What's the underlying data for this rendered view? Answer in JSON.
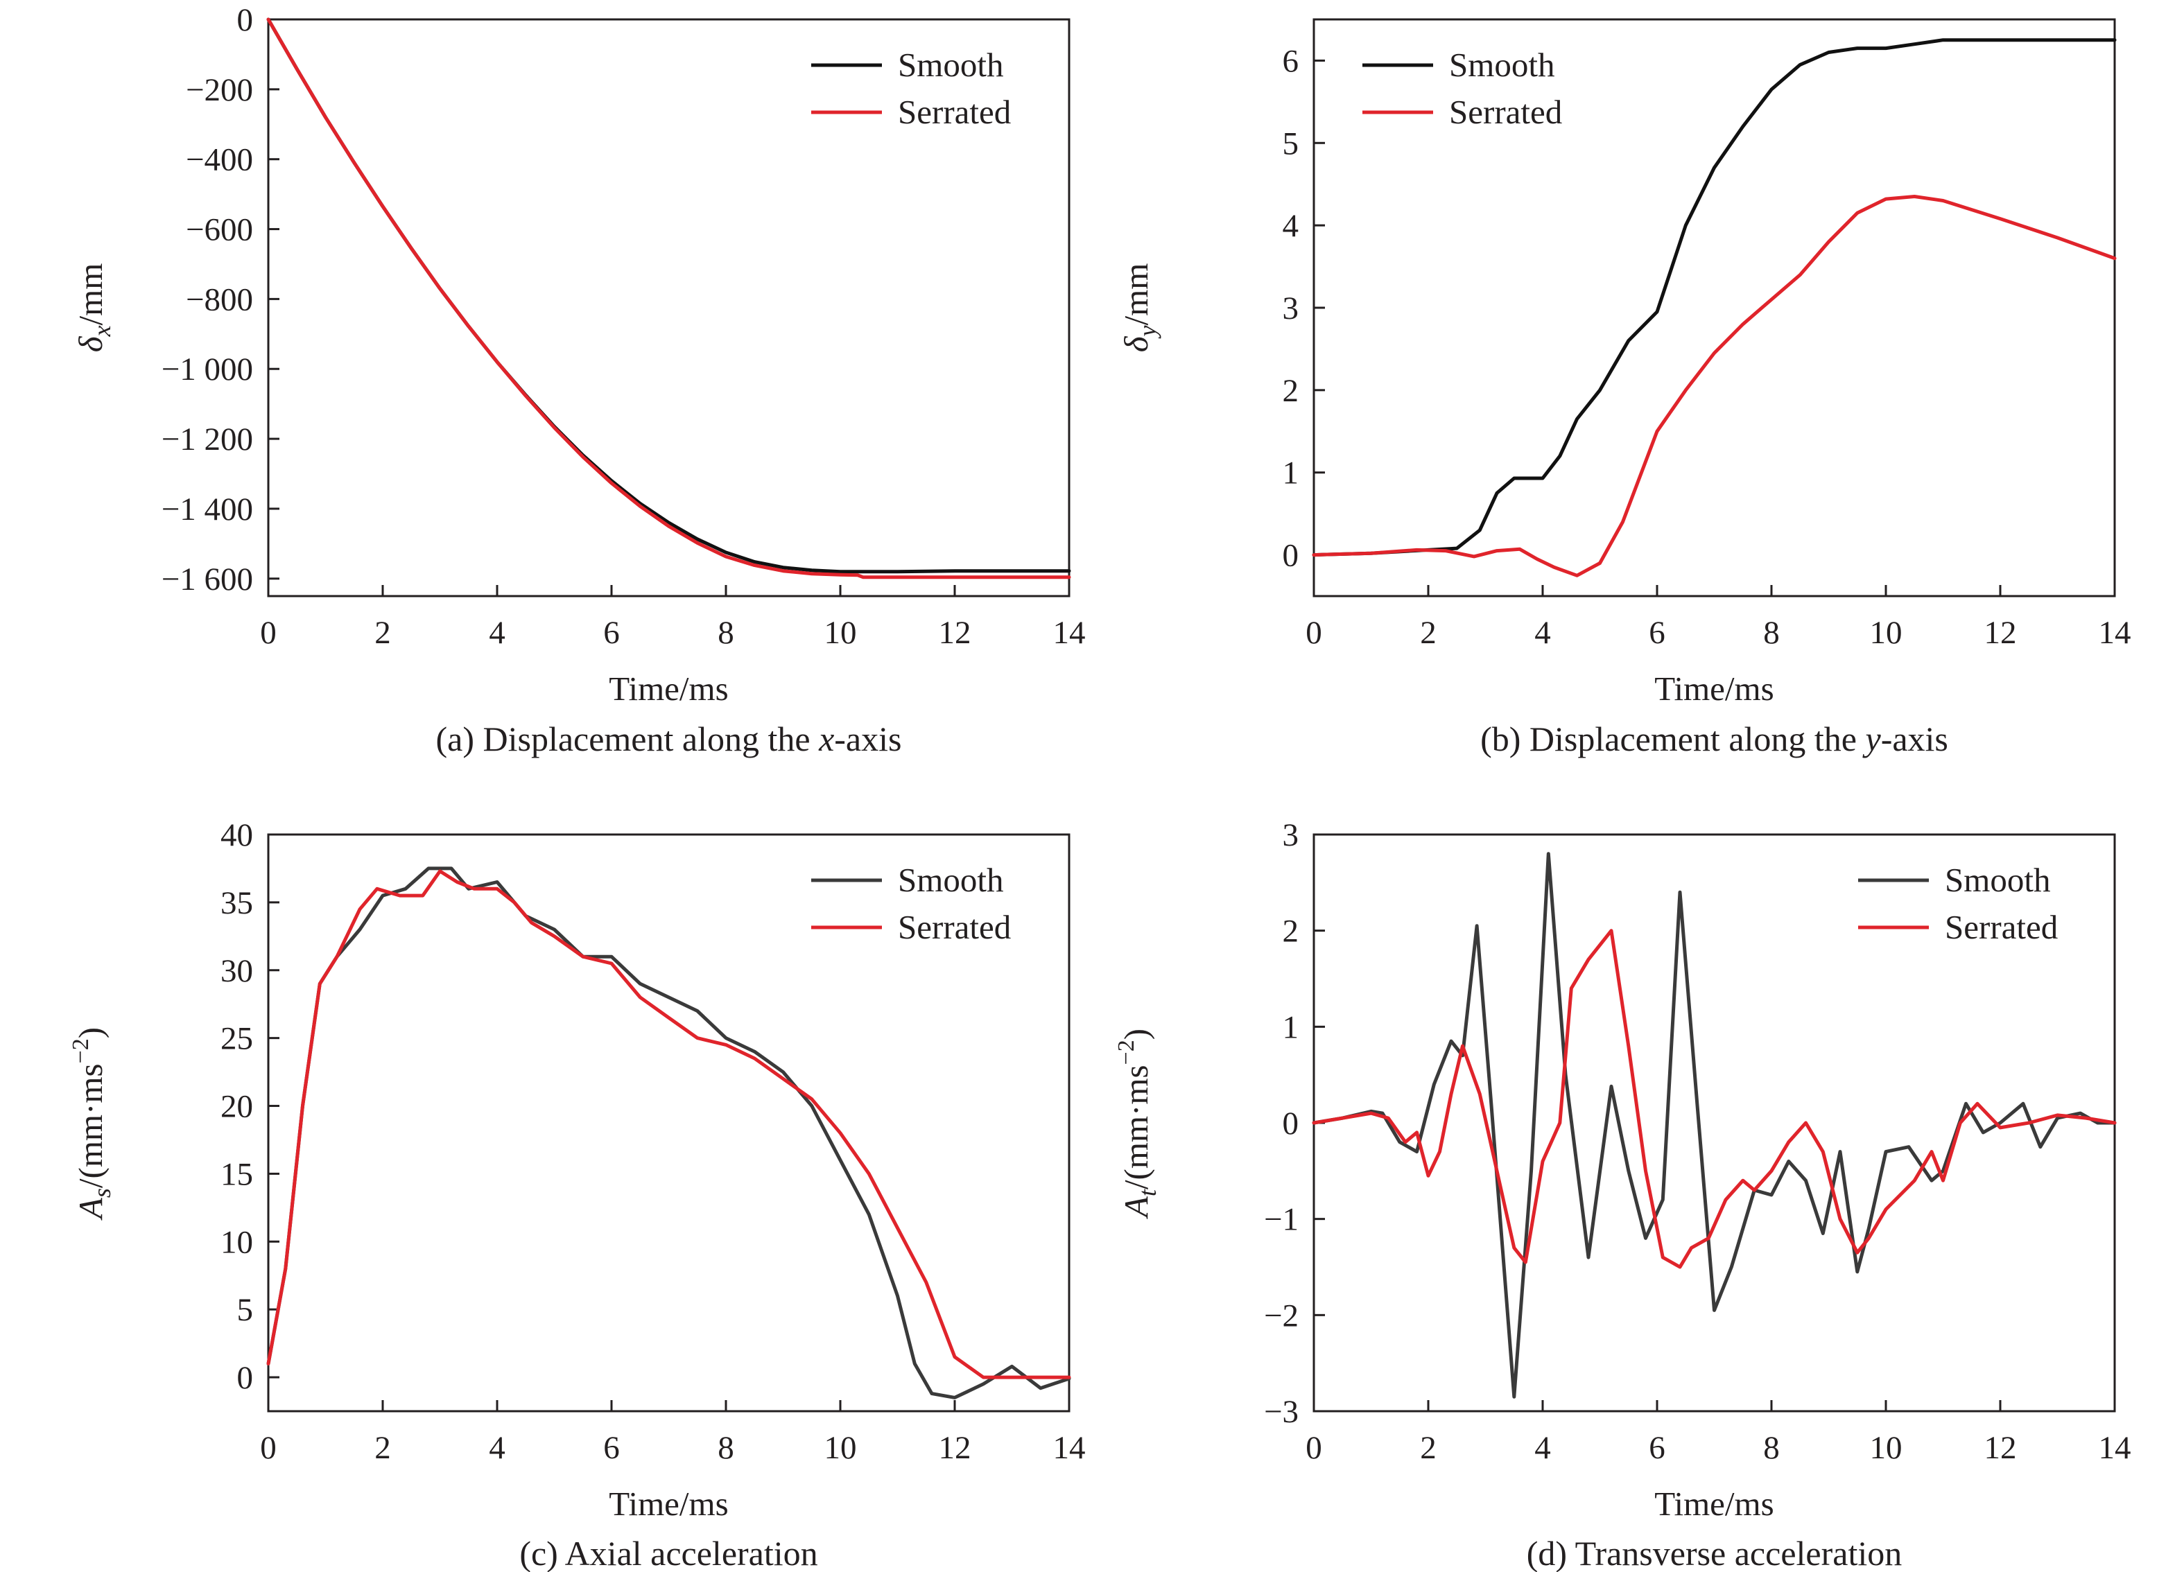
{
  "chart_data": [
    {
      "id": "a",
      "type": "line",
      "caption_prefix": "(a) Displacement along the ",
      "caption_var": "x",
      "caption_suffix": "-axis",
      "xlabel": "Time/ms",
      "ylabel_sym": "δ",
      "ylabel_sub": "x",
      "ylabel_unit": "/mm",
      "xlim": [
        0,
        14
      ],
      "ylim": [
        -1650,
        0
      ],
      "xticks": [
        0,
        2,
        4,
        6,
        8,
        10,
        12,
        14
      ],
      "yticks": [
        0,
        -200,
        -400,
        -600,
        -800,
        -1000,
        -1200,
        -1400,
        -1600
      ],
      "ytick_labels": [
        "0",
        "−200",
        "−400",
        "−600",
        "−800",
        "−1 000",
        "−1 200",
        "−1 400",
        "−1 600"
      ],
      "legend_position": "top-right",
      "series": [
        {
          "name": "Smooth",
          "color": "#111111",
          "x": [
            0,
            0.5,
            1,
            1.5,
            2,
            2.5,
            3,
            3.5,
            4,
            4.5,
            5,
            5.5,
            6,
            6.5,
            7,
            7.5,
            8,
            8.5,
            9,
            9.5,
            10,
            10.5,
            11,
            11.5,
            12,
            13,
            14
          ],
          "y": [
            0,
            -142,
            -280,
            -410,
            -535,
            -655,
            -770,
            -878,
            -980,
            -1075,
            -1165,
            -1247,
            -1320,
            -1385,
            -1440,
            -1487,
            -1525,
            -1552,
            -1568,
            -1576,
            -1580,
            -1580,
            -1580,
            -1579,
            -1578,
            -1578,
            -1578
          ]
        },
        {
          "name": "Serrated",
          "color": "#e0242b",
          "x": [
            0,
            0.5,
            1,
            1.5,
            2,
            2.5,
            3,
            3.5,
            4,
            4.5,
            5,
            5.5,
            6,
            6.5,
            7,
            7.5,
            8,
            8.5,
            9,
            9.5,
            10,
            10.3,
            10.4,
            11,
            12,
            13,
            14
          ],
          "y": [
            0,
            -142,
            -280,
            -410,
            -535,
            -655,
            -770,
            -878,
            -980,
            -1077,
            -1168,
            -1252,
            -1327,
            -1393,
            -1450,
            -1498,
            -1537,
            -1562,
            -1578,
            -1586,
            -1589,
            -1590,
            -1596,
            -1596,
            -1596,
            -1596,
            -1596
          ]
        }
      ]
    },
    {
      "id": "b",
      "type": "line",
      "caption_prefix": "(b) Displacement along the ",
      "caption_var": "y",
      "caption_suffix": "-axis",
      "xlabel": "Time/ms",
      "ylabel_sym": "δ",
      "ylabel_sub": "y",
      "ylabel_unit": "/mm",
      "xlim": [
        0,
        14
      ],
      "ylim": [
        -0.5,
        6.5
      ],
      "xticks": [
        0,
        2,
        4,
        6,
        8,
        10,
        12,
        14
      ],
      "yticks": [
        0,
        1,
        2,
        3,
        4,
        5,
        6
      ],
      "ytick_labels": [
        "0",
        "1",
        "2",
        "3",
        "4",
        "5",
        "6"
      ],
      "legend_position": "top-left",
      "series": [
        {
          "name": "Smooth",
          "color": "#111111",
          "x": [
            0,
            1,
            2,
            2.5,
            2.9,
            3.2,
            3.5,
            3.8,
            4.0,
            4.3,
            4.6,
            5.0,
            5.5,
            6.0,
            6.5,
            7.0,
            7.5,
            8.0,
            8.5,
            9.0,
            9.5,
            9.8,
            10.0,
            10.5,
            11.0,
            11.5,
            12.0,
            13.0,
            14.0
          ],
          "y": [
            0,
            0.02,
            0.06,
            0.08,
            0.3,
            0.75,
            0.93,
            0.93,
            0.93,
            1.2,
            1.65,
            2.0,
            2.6,
            2.95,
            4.0,
            4.7,
            5.2,
            5.65,
            5.95,
            6.1,
            6.15,
            6.15,
            6.15,
            6.2,
            6.25,
            6.25,
            6.25,
            6.25,
            6.25
          ]
        },
        {
          "name": "Serrated",
          "color": "#e0242b",
          "x": [
            0,
            1,
            1.8,
            2.3,
            2.8,
            3.2,
            3.6,
            3.9,
            4.2,
            4.6,
            5.0,
            5.4,
            6.0,
            6.5,
            7.0,
            7.5,
            8.0,
            8.5,
            9.0,
            9.5,
            10.0,
            10.5,
            11.0,
            12.0,
            13.0,
            14.0
          ],
          "y": [
            0,
            0.02,
            0.06,
            0.05,
            -0.02,
            0.05,
            0.07,
            -0.05,
            -0.15,
            -0.25,
            -0.1,
            0.4,
            1.5,
            2.0,
            2.45,
            2.8,
            3.1,
            3.4,
            3.8,
            4.15,
            4.32,
            4.35,
            4.3,
            4.08,
            3.85,
            3.6
          ]
        }
      ]
    },
    {
      "id": "c",
      "type": "line",
      "caption_text": "(c) Axial acceleration",
      "xlabel": "Time/ms",
      "ylabel_sym": "A",
      "ylabel_sub": "s",
      "ylabel_unit": "/(mm·ms",
      "ylabel_sup": "−2",
      "ylabel_close": ")",
      "xlim": [
        0,
        14
      ],
      "ylim": [
        -2.5,
        40
      ],
      "xticks": [
        0,
        2,
        4,
        6,
        8,
        10,
        12,
        14
      ],
      "yticks": [
        0,
        5,
        10,
        15,
        20,
        25,
        30,
        35,
        40
      ],
      "ytick_labels": [
        "0",
        "5",
        "10",
        "15",
        "20",
        "25",
        "30",
        "35",
        "40"
      ],
      "legend_position": "top-right",
      "series": [
        {
          "name": "Smooth",
          "color": "#3a3a3a",
          "x": [
            0,
            0.3,
            0.6,
            0.9,
            1.2,
            1.6,
            2.0,
            2.4,
            2.8,
            3.2,
            3.5,
            4.0,
            4.5,
            5.0,
            5.5,
            6.0,
            6.5,
            7.0,
            7.5,
            8.0,
            8.5,
            9.0,
            9.5,
            10.0,
            10.5,
            11.0,
            11.3,
            11.6,
            12.0,
            12.5,
            13.0,
            13.5,
            14.0
          ],
          "y": [
            1,
            8,
            20,
            29,
            31,
            33,
            35.5,
            36,
            37.5,
            37.5,
            36,
            36.5,
            34,
            33,
            31,
            31,
            29,
            28,
            27,
            25,
            24,
            22.5,
            20,
            16,
            12,
            6,
            1,
            -1.2,
            -1.5,
            -0.5,
            0.8,
            -0.8,
            -0.1
          ]
        },
        {
          "name": "Serrated",
          "color": "#e0242b",
          "x": [
            0,
            0.3,
            0.6,
            0.9,
            1.2,
            1.6,
            1.9,
            2.3,
            2.7,
            3.0,
            3.3,
            3.6,
            4.0,
            4.3,
            4.6,
            5.0,
            5.5,
            6.0,
            6.5,
            7.0,
            7.5,
            8.0,
            8.5,
            9.0,
            9.5,
            10.0,
            10.5,
            11.0,
            11.5,
            12.0,
            12.5,
            13.0,
            14.0
          ],
          "y": [
            1,
            8,
            20,
            29,
            31,
            34.5,
            36,
            35.5,
            35.5,
            37.3,
            36.5,
            36,
            36,
            35,
            33.5,
            32.5,
            31,
            30.5,
            28,
            26.5,
            25,
            24.5,
            23.5,
            22,
            20.5,
            18,
            15,
            11,
            7,
            1.5,
            0,
            0,
            0
          ]
        }
      ]
    },
    {
      "id": "d",
      "type": "line",
      "caption_text": "(d) Transverse acceleration",
      "xlabel": "Time/ms",
      "ylabel_sym": "A",
      "ylabel_sub": "t",
      "ylabel_unit": "/(mm·ms",
      "ylabel_sup": "−2",
      "ylabel_close": ")",
      "xlim": [
        0,
        14
      ],
      "ylim": [
        -3,
        3
      ],
      "xticks": [
        0,
        2,
        4,
        6,
        8,
        10,
        12,
        14
      ],
      "yticks": [
        -3,
        -2,
        -1,
        0,
        1,
        2,
        3
      ],
      "ytick_labels": [
        "−3",
        "−2",
        "−1",
        "0",
        "1",
        "2",
        "3"
      ],
      "legend_position": "top-right",
      "series": [
        {
          "name": "Smooth",
          "color": "#3a3a3a",
          "x": [
            0,
            0.5,
            1.0,
            1.2,
            1.5,
            1.8,
            2.1,
            2.4,
            2.6,
            2.85,
            3.1,
            3.5,
            3.8,
            4.1,
            4.4,
            4.8,
            5.2,
            5.5,
            5.8,
            6.1,
            6.4,
            6.7,
            7.0,
            7.3,
            7.7,
            8.0,
            8.3,
            8.6,
            8.9,
            9.2,
            9.5,
            9.7,
            10.0,
            10.4,
            10.8,
            11.0,
            11.4,
            11.7,
            12.0,
            12.4,
            12.7,
            13.0,
            13.4,
            13.7,
            14.0
          ],
          "y": [
            0,
            0.05,
            0.12,
            0.1,
            -0.2,
            -0.3,
            0.4,
            0.85,
            0.7,
            2.05,
            0.2,
            -2.85,
            -0.5,
            2.8,
            0.5,
            -1.4,
            0.38,
            -0.5,
            -1.2,
            -0.8,
            2.4,
            0.2,
            -1.95,
            -1.5,
            -0.7,
            -0.75,
            -0.4,
            -0.6,
            -1.15,
            -0.3,
            -1.55,
            -1.1,
            -0.3,
            -0.25,
            -0.6,
            -0.5,
            0.2,
            -0.1,
            0.0,
            0.2,
            -0.25,
            0.05,
            0.1,
            0.0,
            0.0
          ]
        },
        {
          "name": "Serrated",
          "color": "#e0242b",
          "x": [
            0,
            0.5,
            1.0,
            1.3,
            1.6,
            1.8,
            2.0,
            2.2,
            2.4,
            2.6,
            2.9,
            3.2,
            3.5,
            3.7,
            4.0,
            4.3,
            4.5,
            4.8,
            5.2,
            5.5,
            5.8,
            6.1,
            6.4,
            6.6,
            6.9,
            7.2,
            7.5,
            7.7,
            8.0,
            8.3,
            8.6,
            8.9,
            9.2,
            9.5,
            9.7,
            10.0,
            10.5,
            10.8,
            11.0,
            11.3,
            11.6,
            12.0,
            12.5,
            13.0,
            13.5,
            14.0
          ],
          "y": [
            0,
            0.05,
            0.1,
            0.05,
            -0.2,
            -0.1,
            -0.55,
            -0.3,
            0.3,
            0.8,
            0.3,
            -0.5,
            -1.3,
            -1.45,
            -0.4,
            0.0,
            1.4,
            1.7,
            2.0,
            0.8,
            -0.5,
            -1.4,
            -1.5,
            -1.3,
            -1.2,
            -0.8,
            -0.6,
            -0.7,
            -0.5,
            -0.2,
            0.0,
            -0.3,
            -1.0,
            -1.35,
            -1.2,
            -0.9,
            -0.6,
            -0.3,
            -0.6,
            0.0,
            0.2,
            -0.05,
            0.0,
            0.08,
            0.05,
            0.0
          ]
        }
      ]
    }
  ]
}
